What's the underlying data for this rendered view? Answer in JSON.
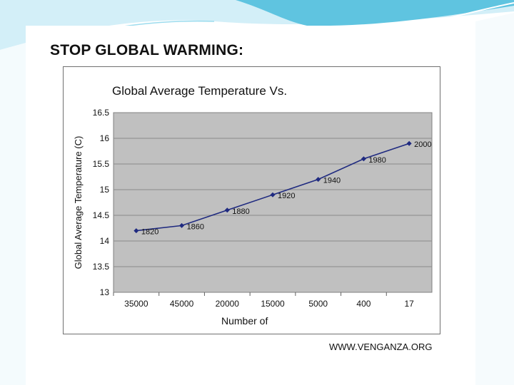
{
  "slide": {
    "title": "STOP GLOBAL WARMING:",
    "source": "WWW.VENGANZA.ORG",
    "colors": {
      "plot_bg": "#c0c0c0",
      "line": "#1f2a80",
      "gridline": "#8a8a8a",
      "accent_blue": "#5fc4e0",
      "accent_light": "#c7ecf6"
    }
  },
  "chart_data": {
    "type": "line",
    "title": "Global Average Temperature Vs.",
    "xlabel": "Number of",
    "ylabel": "Global Average Temperature (C)",
    "categories": [
      "35000",
      "45000",
      "20000",
      "15000",
      "5000",
      "400",
      "17"
    ],
    "series": [
      {
        "name": "Global Average Temperature",
        "values": [
          14.2,
          14.3,
          14.6,
          14.9,
          15.2,
          15.6,
          15.9
        ],
        "point_labels": [
          "1820",
          "1860",
          "1880",
          "1920",
          "1940",
          "1980",
          "2000"
        ]
      }
    ],
    "ylim": [
      13,
      16.5
    ],
    "yticks": [
      13,
      13.5,
      14,
      14.5,
      15,
      15.5,
      16,
      16.5
    ],
    "ytick_labels": [
      "13",
      "13.5",
      "14",
      "14.5",
      "15",
      "15.5",
      "16",
      "16.5"
    ],
    "grid": true,
    "legend": "none"
  }
}
